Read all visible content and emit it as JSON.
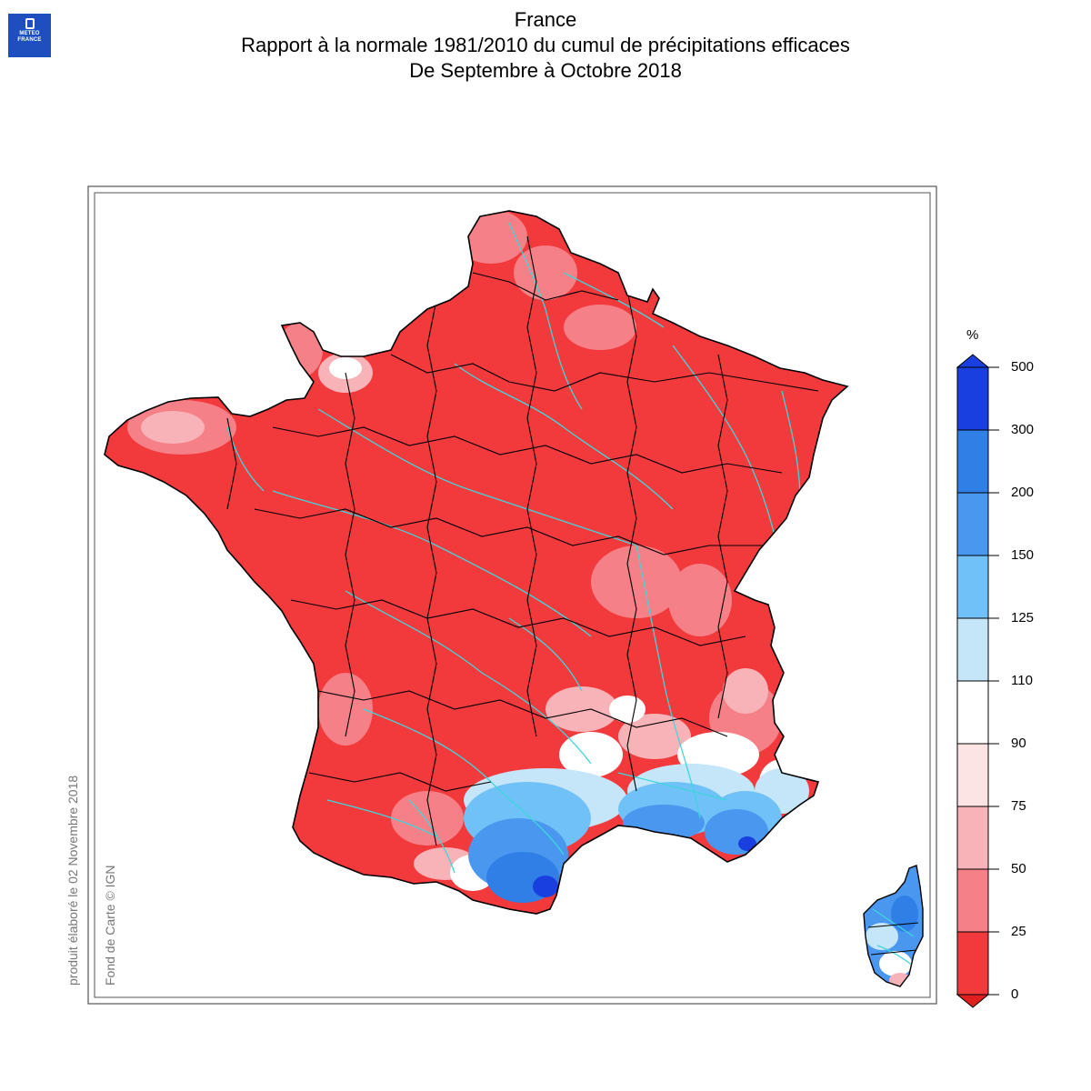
{
  "logo": {
    "line1": "METEO",
    "line2": "FRANCE"
  },
  "title": {
    "line1": "France",
    "line2": "Rapport à la normale 1981/2010 du cumul de précipitations efficaces",
    "line3": "De Septembre à Octobre 2018"
  },
  "side_notes": {
    "produced": "produit élaboré le 02 Novembre 2018",
    "credits": "Fond de Carte © IGN"
  },
  "legend": {
    "unit": "%",
    "ticks": [
      "500",
      "300",
      "200",
      "150",
      "125",
      "110",
      "90",
      "75",
      "50",
      "25",
      "0"
    ],
    "colors_top_to_bottom": [
      "#1a3fe0",
      "#2f7fe6",
      "#4a97ef",
      "#6fc1f7",
      "#c4e6f8",
      "#ffffff",
      "#fde4e4",
      "#f8b3b8",
      "#f58088",
      "#f23a3d"
    ],
    "arrow_top_color": "#1a3fe0",
    "arrow_bottom_color": "#e0201f"
  },
  "map": {
    "dominant_color": "#f23a3d",
    "river_color": "#3ed6dc",
    "border_color": "#000000"
  }
}
